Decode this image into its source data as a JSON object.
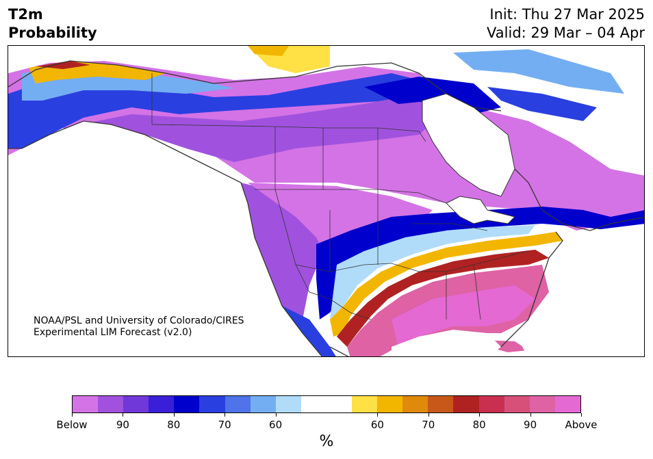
{
  "title": {
    "line1": "T2m",
    "line2": "Probability"
  },
  "dates": {
    "init": "Init: Thu 27 Mar 2025",
    "valid": "Valid: 29 Mar – 04 Apr"
  },
  "credit": {
    "line1": "NOAA/PSL and University of Colorado/CIRES",
    "line2": "Experimental LIM Forecast (v2.0)"
  },
  "colorbar": {
    "colors": [
      "#d473e6",
      "#a052de",
      "#7038d8",
      "#3a1fd8",
      "#0000cc",
      "#2a3fe0",
      "#4f73e8",
      "#74aef2",
      "#b0dcfa",
      "#ffffff",
      "#ffffff",
      "#ffe045",
      "#f2b600",
      "#df8a0a",
      "#c8581a",
      "#b02222",
      "#c93050",
      "#d6507a",
      "#de62a4",
      "#e569d3"
    ],
    "labels": [
      "Below",
      "90",
      "80",
      "70",
      "60",
      "60",
      "70",
      "80",
      "90",
      "Above"
    ],
    "unit": "%"
  },
  "colors": {
    "ocean": "#ffffff",
    "coast": "#333333",
    "borders": "#333333"
  }
}
